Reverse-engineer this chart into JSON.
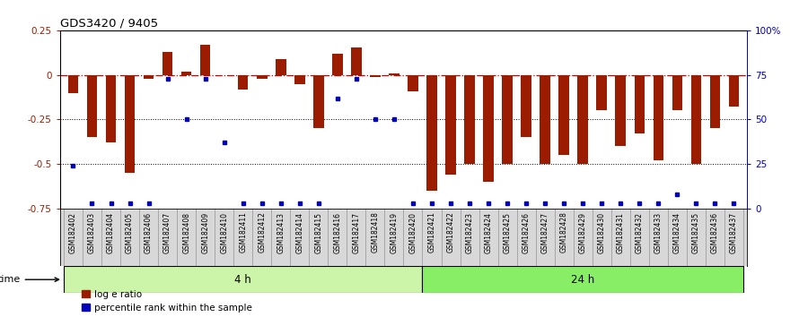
{
  "title": "GDS3420 / 9405",
  "samples": [
    "GSM182402",
    "GSM182403",
    "GSM182404",
    "GSM182405",
    "GSM182406",
    "GSM182407",
    "GSM182408",
    "GSM182409",
    "GSM182410",
    "GSM182411",
    "GSM182412",
    "GSM182413",
    "GSM182414",
    "GSM182415",
    "GSM182416",
    "GSM182417",
    "GSM182418",
    "GSM182419",
    "GSM182420",
    "GSM182421",
    "GSM182422",
    "GSM182423",
    "GSM182424",
    "GSM182425",
    "GSM182426",
    "GSM182427",
    "GSM182428",
    "GSM182429",
    "GSM182430",
    "GSM182431",
    "GSM182432",
    "GSM182433",
    "GSM182434",
    "GSM182435",
    "GSM182436",
    "GSM182437"
  ],
  "log_ratio": [
    -0.1,
    -0.35,
    -0.38,
    -0.55,
    -0.02,
    0.13,
    0.02,
    0.17,
    0.0,
    -0.08,
    -0.02,
    0.09,
    -0.05,
    -0.3,
    0.12,
    0.155,
    -0.01,
    0.01,
    -0.09,
    -0.65,
    -0.56,
    -0.5,
    -0.6,
    -0.5,
    -0.35,
    -0.5,
    -0.45,
    -0.5,
    -0.2,
    -0.4,
    -0.33,
    -0.48,
    -0.2,
    -0.5,
    -0.3,
    -0.18
  ],
  "percentile": [
    24,
    3,
    3,
    3,
    3,
    73,
    50,
    73,
    37,
    3,
    3,
    3,
    3,
    3,
    62,
    73,
    50,
    50,
    3,
    3,
    3,
    3,
    3,
    3,
    3,
    3,
    3,
    3,
    3,
    3,
    3,
    3,
    8,
    3,
    3,
    3
  ],
  "n_4h": 19,
  "bar_color": "#9b1c00",
  "dot_color": "#0000bb",
  "zero_line_color": "#cc0000",
  "dotted_line_color": "#000000",
  "ylim_left": [
    -0.75,
    0.25
  ],
  "ylim_right": [
    0,
    100
  ],
  "right_ticks": [
    0,
    25,
    50,
    75,
    100
  ],
  "right_tick_labels": [
    "0",
    "25",
    "50",
    "75",
    "100%"
  ],
  "left_ticks": [
    -0.75,
    -0.5,
    -0.25,
    0.0,
    0.25
  ],
  "left_tick_labels": [
    "-0.75",
    "-0.5",
    "-0.25",
    "0",
    "0.25"
  ],
  "hlines": [
    -0.25,
    -0.5
  ],
  "time_label": "time",
  "group_4h_label": "4 h",
  "group_24h_label": "24 h",
  "legend_red": "log e ratio",
  "legend_blue": "percentile rank within the sample",
  "color_4h": "#ccf5aa",
  "color_24h": "#88ee66",
  "xlabel_bg": "#d8d8d8",
  "fig_width": 8.9,
  "fig_height": 3.54
}
